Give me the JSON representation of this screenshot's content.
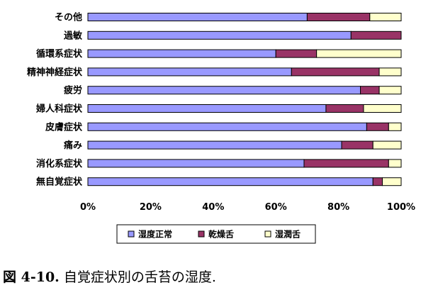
{
  "chart_data": {
    "type": "bar",
    "orientation": "horizontal",
    "stacked": true,
    "categories": [
      "その他",
      "過敏",
      "循環系症状",
      "精神神経症状",
      "疲労",
      "婦人科症状",
      "皮膚症状",
      "痛み",
      "消化系症状",
      "無自覚症状"
    ],
    "series": [
      {
        "name": "湿度正常",
        "color": "#9999ff",
        "values": [
          70,
          84,
          60,
          65,
          87,
          76,
          89,
          81,
          69,
          91
        ]
      },
      {
        "name": "乾燥舌",
        "color": "#993366",
        "values": [
          20,
          16,
          13,
          28,
          6,
          12,
          7,
          10,
          27,
          3
        ]
      },
      {
        "name": "湿潤舌",
        "color": "#ffffcc",
        "values": [
          10,
          0,
          27,
          7,
          7,
          12,
          4,
          9,
          4,
          6
        ]
      }
    ],
    "xlim": [
      0,
      100
    ],
    "xticks": [
      "0%",
      "20%",
      "40%",
      "60%",
      "80%",
      "100%"
    ],
    "legend_position": "bottom",
    "grid": false
  },
  "caption": {
    "prefix": "図 4-10.",
    "text": " 自覚症状別の舌苔の湿度."
  }
}
